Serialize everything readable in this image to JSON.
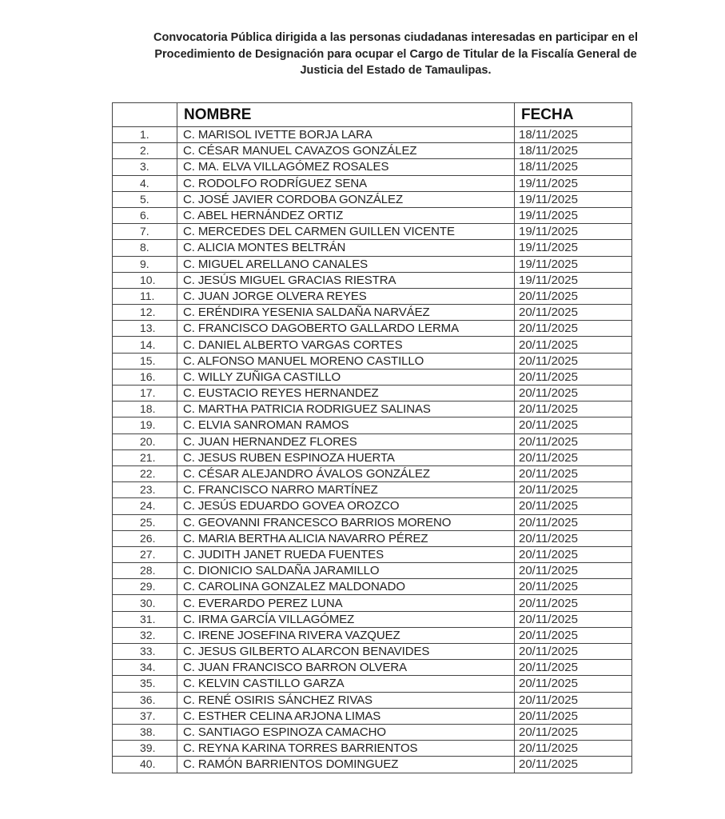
{
  "title_lines": [
    "Convocatoria Pública dirigida a las personas ciudadanas interesadas en participar en el",
    "Procedimiento de Designación para ocupar el Cargo de Titular de la Fiscalía General de",
    "Justicia del Estado de Tamaulipas."
  ],
  "table": {
    "headers": [
      "",
      "NOMBRE",
      "FECHA"
    ],
    "rows": [
      [
        "1.",
        "C. MARISOL IVETTE BORJA LARA",
        "18/11/2025"
      ],
      [
        "2.",
        "C. CÉSAR MANUEL CAVAZOS GONZÁLEZ",
        "18/11/2025"
      ],
      [
        "3.",
        "C. MA. ELVA VILLAGÓMEZ ROSALES",
        "18/11/2025"
      ],
      [
        "4.",
        "C. RODOLFO RODRÍGUEZ SENA",
        "19/11/2025"
      ],
      [
        "5.",
        "C. JOSÉ JAVIER CORDOBA GONZÁLEZ",
        "19/11/2025"
      ],
      [
        "6.",
        "C. ABEL HERNÁNDEZ ORTIZ",
        "19/11/2025"
      ],
      [
        "7.",
        "C. MERCEDES DEL CARMEN GUILLEN VICENTE",
        "19/11/2025"
      ],
      [
        "8.",
        "C. ALICIA MONTES BELTRÁN",
        "19/11/2025"
      ],
      [
        "9.",
        "C. MIGUEL ARELLANO CANALES",
        "19/11/2025"
      ],
      [
        "10.",
        "C. JESÚS MIGUEL GRACIAS RIESTRA",
        "19/11/2025"
      ],
      [
        "11.",
        "C. JUAN JORGE OLVERA REYES",
        "20/11/2025"
      ],
      [
        "12.",
        "C. ERÉNDIRA YESENIA SALDAÑA NARVÁEZ",
        "20/11/2025"
      ],
      [
        "13.",
        "C. FRANCISCO DAGOBERTO GALLARDO LERMA",
        "20/11/2025"
      ],
      [
        "14.",
        "C. DANIEL ALBERTO VARGAS CORTES",
        "20/11/2025"
      ],
      [
        "15.",
        "C. ALFONSO MANUEL MORENO CASTILLO",
        "20/11/2025"
      ],
      [
        "16.",
        "C. WILLY ZUÑIGA CASTILLO",
        "20/11/2025"
      ],
      [
        "17.",
        "C. EUSTACIO REYES HERNANDEZ",
        "20/11/2025"
      ],
      [
        "18.",
        "C. MARTHA PATRICIA RODRIGUEZ SALINAS",
        "20/11/2025"
      ],
      [
        "19.",
        "C. ELVIA SANROMAN RAMOS",
        "20/11/2025"
      ],
      [
        "20.",
        "C. JUAN HERNANDEZ FLORES",
        "20/11/2025"
      ],
      [
        "21.",
        "C. JESUS RUBEN ESPINOZA HUERTA",
        "20/11/2025"
      ],
      [
        "22.",
        "C. CÉSAR ALEJANDRO ÁVALOS GONZÁLEZ",
        "20/11/2025"
      ],
      [
        "23.",
        "C. FRANCISCO NARRO MARTÍNEZ",
        "20/11/2025"
      ],
      [
        "24.",
        "C. JESÚS EDUARDO GOVEA OROZCO",
        "20/11/2025"
      ],
      [
        "25.",
        "C. GEOVANNI FRANCESCO BARRIOS MORENO",
        "20/11/2025"
      ],
      [
        "26.",
        "C. MARIA BERTHA ALICIA NAVARRO PÉREZ",
        "20/11/2025"
      ],
      [
        "27.",
        "C. JUDITH JANET RUEDA FUENTES",
        "20/11/2025"
      ],
      [
        "28.",
        "C. DIONICIO SALDAÑA JARAMILLO",
        "20/11/2025"
      ],
      [
        "29.",
        "C. CAROLINA GONZALEZ MALDONADO",
        "20/11/2025"
      ],
      [
        "30.",
        "C. EVERARDO PEREZ LUNA",
        "20/11/2025"
      ],
      [
        "31.",
        "C. IRMA GARCÍA VILLAGÓMEZ",
        "20/11/2025"
      ],
      [
        "32.",
        "C. IRENE JOSEFINA RIVERA VAZQUEZ",
        "20/11/2025"
      ],
      [
        "33.",
        "C. JESUS GILBERTO ALARCON BENAVIDES",
        "20/11/2025"
      ],
      [
        "34.",
        "C. JUAN FRANCISCO BARRON OLVERA",
        "20/11/2025"
      ],
      [
        "35.",
        "C. KELVIN CASTILLO GARZA",
        "20/11/2025"
      ],
      [
        "36.",
        "C. RENÉ OSIRIS SÁNCHEZ RIVAS",
        "20/11/2025"
      ],
      [
        "37.",
        "C. ESTHER CELINA ARJONA LIMAS",
        "20/11/2025"
      ],
      [
        "38.",
        "C. SANTIAGO ESPINOZA CAMACHO",
        "20/11/2025"
      ],
      [
        "39.",
        "C. REYNA KARINA TORRES BARRIENTOS",
        "20/11/2025"
      ],
      [
        "40.",
        "C. RAMÓN BARRIENTOS DOMINGUEZ",
        "20/11/2025"
      ]
    ]
  }
}
